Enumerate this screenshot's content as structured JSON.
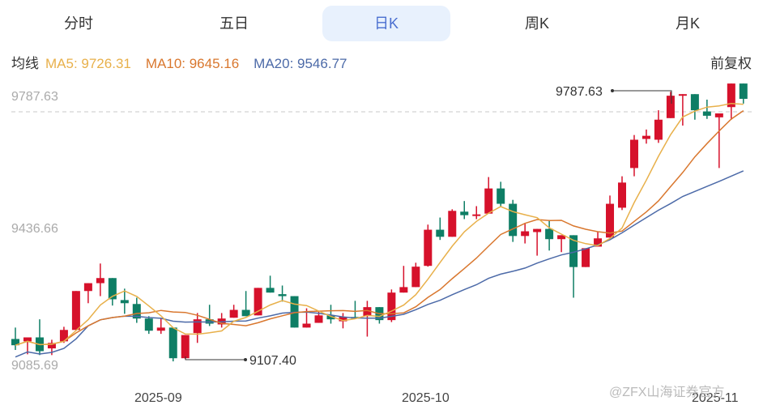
{
  "tabs": [
    {
      "label": "分时",
      "active": false
    },
    {
      "label": "五日",
      "active": false
    },
    {
      "label": "日K",
      "active": true
    },
    {
      "label": "周K",
      "active": false
    },
    {
      "label": "月K",
      "active": false
    }
  ],
  "legend": {
    "title": "均线",
    "ma5": "MA5: 9726.31",
    "ma10": "MA10: 9645.16",
    "ma20": "MA20: 9546.77"
  },
  "adjust_label": "前复权",
  "colors": {
    "up": "#d6112b",
    "down": "#0e7e65",
    "ma5": "#e8b04a",
    "ma10": "#d9772e",
    "ma20": "#4c6aa8",
    "active_tab_bg": "#e8f1fd"
  },
  "watermark": "@ZFX山海证券官方",
  "chart_data": {
    "type": "candlestick",
    "title": "日K",
    "y_axis_labels": [
      "9787.63",
      "9436.66",
      "9085.69"
    ],
    "x_axis_labels": [
      "2025-09",
      "2025-10",
      "2025-11"
    ],
    "annotations": {
      "max": "9787.63",
      "min": "9107.40"
    },
    "reference_line": 9787.63,
    "ma_latest": {
      "MA5": 9726.31,
      "MA10": 9645.16,
      "MA20": 9546.77
    },
    "candles": [
      [
        9158,
        9142,
        9187,
        9130
      ],
      [
        9152,
        9162,
        9162,
        9119
      ],
      [
        9162,
        9127,
        9208,
        9117
      ],
      [
        9134,
        9148,
        9156,
        9117
      ],
      [
        9152,
        9181,
        9189,
        9148
      ],
      [
        9181,
        9280,
        9189,
        9294
      ],
      [
        9280,
        9300,
        9300,
        9249
      ],
      [
        9300,
        9313,
        9350,
        9267
      ],
      [
        9313,
        9259,
        9313,
        9243
      ],
      [
        9257,
        9249,
        9286,
        9222
      ],
      [
        9247,
        9210,
        9263,
        9199
      ],
      [
        9210,
        9179,
        9216,
        9171
      ],
      [
        9179,
        9187,
        9210,
        9171
      ],
      [
        9187,
        9109,
        9187,
        9101
      ],
      [
        9109,
        9168,
        9168,
        9107
      ],
      [
        9173,
        9208,
        9224,
        9148
      ],
      [
        9208,
        9197,
        9245,
        9191
      ],
      [
        9195,
        9210,
        9224,
        9187
      ],
      [
        9212,
        9232,
        9245,
        9232
      ],
      [
        9232,
        9216,
        9280,
        9216
      ],
      [
        9218,
        9288,
        9288,
        9218
      ],
      [
        9288,
        9276,
        9319,
        9276
      ],
      [
        9272,
        9267,
        9294,
        9253
      ],
      [
        9267,
        9187,
        9267,
        9187
      ],
      [
        9187,
        9197,
        9236,
        9187
      ],
      [
        9199,
        9218,
        9230,
        9199
      ],
      [
        9218,
        9208,
        9245,
        9197
      ],
      [
        9203,
        9214,
        9224,
        9185
      ],
      [
        9214,
        9210,
        9255,
        9210
      ],
      [
        9216,
        9239,
        9255,
        9164
      ],
      [
        9239,
        9206,
        9239,
        9197
      ],
      [
        9206,
        9276,
        9284,
        9201
      ],
      [
        9276,
        9290,
        9344,
        9276
      ],
      [
        9290,
        9342,
        9352,
        9290
      ],
      [
        9344,
        9436,
        9449,
        9342
      ],
      [
        9436,
        9418,
        9467,
        9410
      ],
      [
        9418,
        9484,
        9488,
        9418
      ],
      [
        9482,
        9473,
        9509,
        9463
      ],
      [
        9473,
        9475,
        9496,
        9463
      ],
      [
        9477,
        9541,
        9570,
        9477
      ],
      [
        9541,
        9502,
        9558,
        9494
      ],
      [
        9502,
        9420,
        9512,
        9405
      ],
      [
        9420,
        9432,
        9453,
        9401
      ],
      [
        9430,
        9438,
        9438,
        9370
      ],
      [
        9438,
        9412,
        9461,
        9383
      ],
      [
        9412,
        9422,
        9422,
        9379
      ],
      [
        9422,
        9341,
        9422,
        9263
      ],
      [
        9341,
        9389,
        9354,
        9389
      ],
      [
        9393,
        9414,
        9430,
        9393
      ],
      [
        9416,
        9502,
        9523,
        9416
      ],
      [
        9492,
        9556,
        9572,
        9486
      ],
      [
        9593,
        9665,
        9677,
        9572
      ],
      [
        9667,
        9675,
        9691,
        9655
      ],
      [
        9665,
        9716,
        9740,
        9657
      ],
      [
        9720,
        9777,
        9787,
        9720
      ],
      [
        9779,
        9781,
        9781,
        9701
      ],
      [
        9781,
        9740,
        9781,
        9716
      ],
      [
        9737,
        9726,
        9767,
        9718
      ],
      [
        9722,
        9732,
        9732,
        9593
      ],
      [
        9748,
        9808,
        9787,
        9716
      ],
      [
        9808,
        9769,
        9787,
        9757
      ]
    ],
    "candle_format": "[open, close, high, low] approximate"
  }
}
